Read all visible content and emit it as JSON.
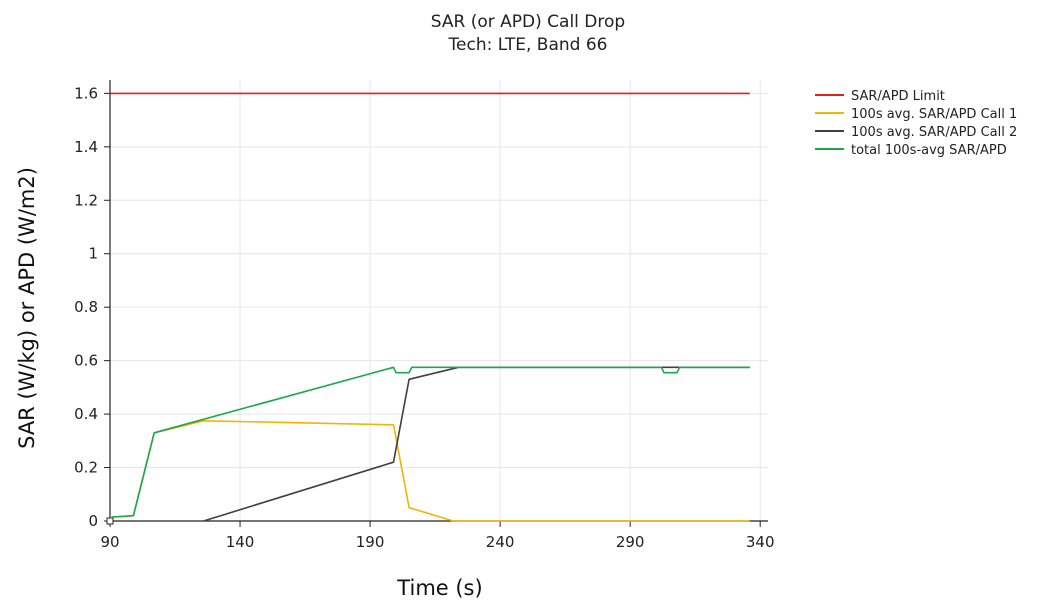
{
  "chart_data": {
    "type": "line",
    "title": "SAR (or APD) Call Drop",
    "subtitle": "Tech: LTE, Band 66",
    "xlabel": "Time (s)",
    "ylabel": "SAR (W/kg) or APD (W/m2)",
    "xlim": [
      90,
      343
    ],
    "ylim": [
      0,
      1.65
    ],
    "xticks": [
      90,
      140,
      190,
      240,
      290,
      340
    ],
    "yticks": [
      0,
      0.2,
      0.4,
      0.6,
      0.8,
      1,
      1.2,
      1.4,
      1.6
    ],
    "xtick_labels": [
      "90",
      "140",
      "190",
      "240",
      "290",
      "340"
    ],
    "ytick_labels": [
      "0",
      "0.2",
      "0.4",
      "0.6",
      "0.8",
      "1",
      "1.2",
      "1.4",
      "1.6"
    ],
    "grid": true,
    "legend_position": "right",
    "series": [
      {
        "name": "SAR/APD Limit",
        "color": "#e0211b",
        "points": [
          [
            90,
            1.6
          ],
          [
            336,
            1.6
          ]
        ]
      },
      {
        "name": "100s avg. SAR/APD Call 1",
        "color": "#f5b400",
        "points": [
          [
            90,
            0.01
          ],
          [
            91,
            0.015
          ],
          [
            99,
            0.02
          ],
          [
            107,
            0.33
          ],
          [
            126,
            0.375
          ],
          [
            199,
            0.36
          ],
          [
            205,
            0.05
          ],
          [
            222,
            0.0
          ],
          [
            336,
            0.0
          ]
        ]
      },
      {
        "name": "100s avg. SAR/APD Call 2",
        "color": "#404040",
        "points": [
          [
            126,
            0.0
          ],
          [
            199,
            0.22
          ],
          [
            205,
            0.53
          ],
          [
            224,
            0.575
          ],
          [
            336,
            0.575
          ]
        ]
      },
      {
        "name": "total 100s-avg SAR/APD",
        "color": "#1aa84a",
        "points": [
          [
            90,
            0.01
          ],
          [
            91,
            0.015
          ],
          [
            99,
            0.02
          ],
          [
            107,
            0.33
          ],
          [
            199,
            0.575
          ],
          [
            200,
            0.555
          ],
          [
            205,
            0.555
          ],
          [
            206,
            0.575
          ],
          [
            302,
            0.575
          ],
          [
            303,
            0.555
          ],
          [
            308,
            0.555
          ],
          [
            309,
            0.575
          ],
          [
            336,
            0.575
          ]
        ]
      }
    ]
  }
}
